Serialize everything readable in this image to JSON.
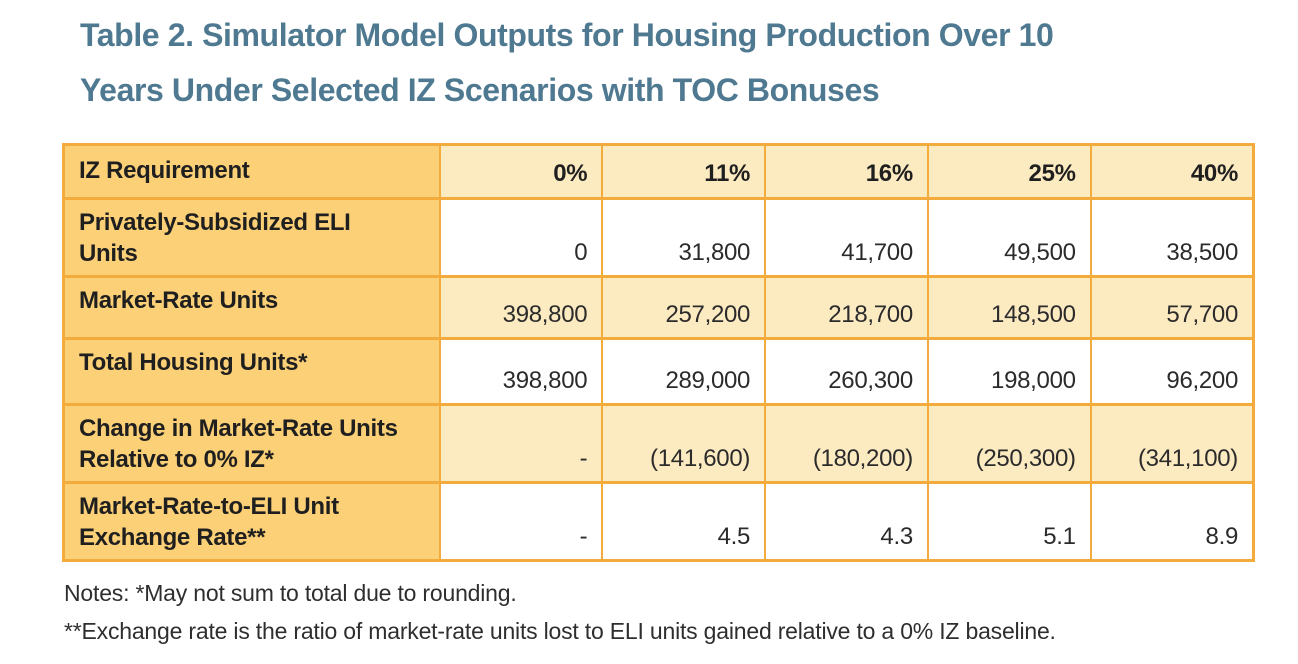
{
  "title": {
    "line1": "Table 2. Simulator Model Outputs for Housing Production Over 10",
    "line2": "Years Under Selected IZ Scenarios with TOC Bonuses"
  },
  "table": {
    "header": {
      "label": "IZ Requirement",
      "columns": [
        "0%",
        "11%",
        "16%",
        "25%",
        "40%"
      ]
    },
    "rows": [
      {
        "label": "Privately-Subsidized ELI Units",
        "values": [
          "0",
          "31,800",
          "41,700",
          "49,500",
          "38,500"
        ]
      },
      {
        "label": "Market-Rate Units",
        "values": [
          "398,800",
          "257,200",
          "218,700",
          "148,500",
          "57,700"
        ]
      },
      {
        "label": "Total Housing Units*",
        "values": [
          "398,800",
          "289,000",
          "260,300",
          "198,000",
          "96,200"
        ]
      },
      {
        "label": "Change in Market-Rate Units Relative to 0% IZ*",
        "values": [
          "-",
          "(141,600)",
          "(180,200)",
          "(250,300)",
          "(341,100)"
        ]
      },
      {
        "label": "Market-Rate-to-ELI Unit Exchange Rate**",
        "values": [
          "-",
          "4.5",
          "4.3",
          "5.1",
          "8.9"
        ]
      }
    ]
  },
  "notes": {
    "line1": "Notes: *May not sum to total due to rounding.",
    "line2": "**Exchange rate is the ratio of market-rate units lost to ELI units gained relative to a 0% IZ baseline."
  },
  "colors": {
    "title_color": "#4E7990",
    "border_color": "#F3AC3C",
    "label_cell_bg": "#FBD077",
    "shaded_cell_bg": "#FCEAC1",
    "body_text": "#2B2B2B"
  }
}
